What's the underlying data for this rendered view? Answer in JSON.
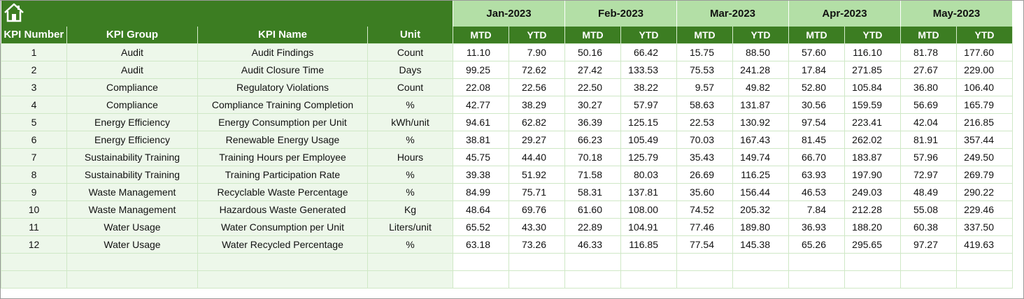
{
  "header": {
    "home_icon": "home-icon",
    "months": [
      "Jan-2023",
      "Feb-2023",
      "Mar-2023",
      "Apr-2023",
      "May-2023"
    ],
    "columns": [
      "KPI Number",
      "KPI Group",
      "KPI Name",
      "Unit"
    ],
    "mtd_label": "MTD",
    "ytd_label": "YTD"
  },
  "rows": [
    {
      "num": "1",
      "group": "Audit",
      "name": "Audit Findings",
      "unit": "Count",
      "vals": [
        "11.10",
        "7.90",
        "50.16",
        "66.42",
        "15.75",
        "88.50",
        "57.60",
        "116.10",
        "81.78",
        "177.60"
      ]
    },
    {
      "num": "2",
      "group": "Audit",
      "name": "Audit Closure Time",
      "unit": "Days",
      "vals": [
        "99.25",
        "72.62",
        "27.42",
        "133.53",
        "75.53",
        "241.28",
        "17.84",
        "271.85",
        "27.67",
        "229.00"
      ]
    },
    {
      "num": "3",
      "group": "Compliance",
      "name": "Regulatory Violations",
      "unit": "Count",
      "vals": [
        "22.08",
        "22.56",
        "22.50",
        "38.22",
        "9.57",
        "49.82",
        "52.80",
        "105.84",
        "36.80",
        "106.40"
      ]
    },
    {
      "num": "4",
      "group": "Compliance",
      "name": "Compliance Training Completion",
      "unit": "%",
      "vals": [
        "42.77",
        "38.29",
        "30.27",
        "57.97",
        "58.63",
        "131.87",
        "30.56",
        "159.59",
        "56.69",
        "165.79"
      ]
    },
    {
      "num": "5",
      "group": "Energy Efficiency",
      "name": "Energy Consumption per Unit",
      "unit": "kWh/unit",
      "vals": [
        "94.61",
        "62.82",
        "36.39",
        "125.15",
        "22.53",
        "130.92",
        "97.54",
        "223.41",
        "42.04",
        "216.85"
      ]
    },
    {
      "num": "6",
      "group": "Energy Efficiency",
      "name": "Renewable Energy Usage",
      "unit": "%",
      "vals": [
        "38.81",
        "29.27",
        "66.23",
        "105.49",
        "70.03",
        "167.43",
        "81.45",
        "262.02",
        "81.91",
        "357.44"
      ]
    },
    {
      "num": "7",
      "group": "Sustainability Training",
      "name": "Training Hours per Employee",
      "unit": "Hours",
      "vals": [
        "45.75",
        "44.40",
        "70.18",
        "125.79",
        "35.43",
        "149.74",
        "66.70",
        "183.87",
        "57.96",
        "249.50"
      ]
    },
    {
      "num": "8",
      "group": "Sustainability Training",
      "name": "Training Participation Rate",
      "unit": "%",
      "vals": [
        "39.38",
        "51.92",
        "71.58",
        "80.03",
        "26.69",
        "116.25",
        "63.93",
        "197.90",
        "72.97",
        "269.79"
      ]
    },
    {
      "num": "9",
      "group": "Waste Management",
      "name": "Recyclable Waste Percentage",
      "unit": "%",
      "vals": [
        "84.99",
        "75.71",
        "58.31",
        "137.81",
        "35.60",
        "156.44",
        "46.53",
        "249.03",
        "48.49",
        "290.22"
      ]
    },
    {
      "num": "10",
      "group": "Waste Management",
      "name": "Hazardous Waste Generated",
      "unit": "Kg",
      "vals": [
        "48.64",
        "69.76",
        "61.60",
        "108.00",
        "74.52",
        "205.32",
        "7.84",
        "212.28",
        "55.08",
        "229.46"
      ]
    },
    {
      "num": "11",
      "group": "Water Usage",
      "name": "Water Consumption per Unit",
      "unit": "Liters/unit",
      "vals": [
        "65.52",
        "43.30",
        "22.89",
        "104.91",
        "77.46",
        "189.80",
        "36.93",
        "188.20",
        "60.38",
        "337.50"
      ]
    },
    {
      "num": "12",
      "group": "Water Usage",
      "name": "Water Recycled Percentage",
      "unit": "%",
      "vals": [
        "63.18",
        "73.26",
        "46.33",
        "116.85",
        "77.54",
        "145.38",
        "65.26",
        "295.65",
        "97.27",
        "419.63"
      ]
    }
  ],
  "colors": {
    "header_green": "#3c7d22",
    "month_green": "#b3dfa6",
    "left_fill": "#edf7ea",
    "grid": "#cfe8c6"
  }
}
